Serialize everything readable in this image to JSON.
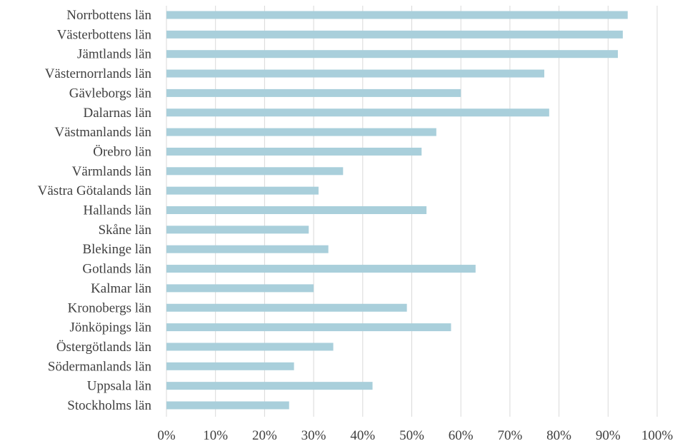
{
  "chart_data": {
    "type": "bar",
    "orientation": "horizontal",
    "title": "",
    "xlabel": "",
    "ylabel": "",
    "categories": [
      "Norrbottens län",
      "Västerbottens län",
      "Jämtlands län",
      "Västernorrlands län",
      "Gävleborgs län",
      "Dalarnas län",
      "Västmanlands län",
      "Örebro län",
      "Värmlands län",
      "Västra Götalands län",
      "Hallands län",
      "Skåne län",
      "Blekinge län",
      "Gotlands län",
      "Kalmar län",
      "Kronobergs län",
      "Jönköpings län",
      "Östergötlands län",
      "Södermanlands län",
      "Uppsala län",
      "Stockholms län"
    ],
    "values": [
      94,
      93,
      92,
      77,
      60,
      78,
      55,
      52,
      36,
      31,
      53,
      29,
      33,
      63,
      30,
      49,
      58,
      34,
      26,
      42,
      25
    ],
    "xlim": [
      0,
      100
    ],
    "x_ticks": [
      "0%",
      "10%",
      "20%",
      "30%",
      "40%",
      "50%",
      "60%",
      "70%",
      "80%",
      "90%",
      "100%"
    ],
    "grid": true,
    "legend": "none",
    "colors": {
      "bar": "#a9cfdb",
      "grid": "#d9d9d9",
      "text": "#404040"
    }
  }
}
